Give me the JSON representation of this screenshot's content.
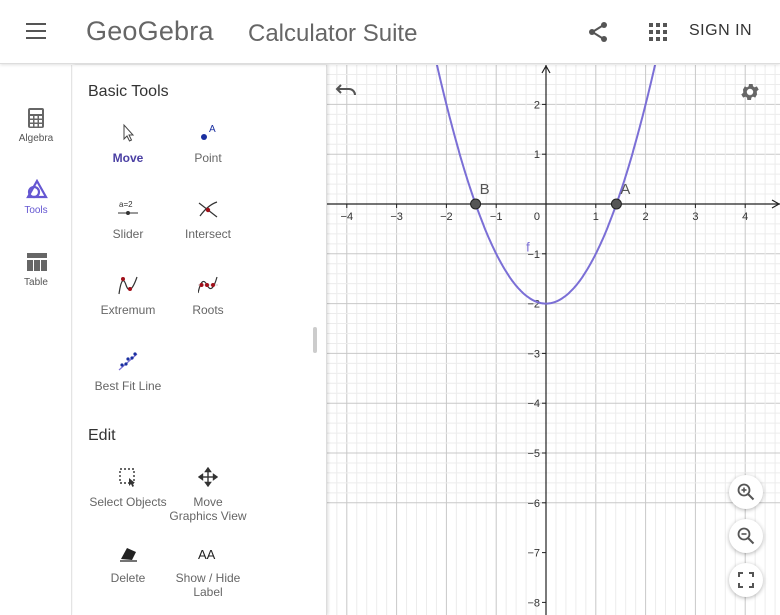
{
  "header": {
    "logo_text": "GeoGebra",
    "title": "Calculator Suite",
    "sign_in_label": "SIGN IN"
  },
  "rail": {
    "items": [
      {
        "label": "Algebra",
        "icon": "calculator-icon",
        "active": false
      },
      {
        "label": "Tools",
        "icon": "tools-icon",
        "active": true
      },
      {
        "label": "Table",
        "icon": "table-icon",
        "active": false
      }
    ]
  },
  "tools_panel": {
    "sections": [
      {
        "title": "Basic Tools",
        "tools": [
          {
            "label": "Move",
            "icon": "cursor-arrow-icon",
            "active": true
          },
          {
            "label": "Point",
            "icon": "point-icon"
          },
          {
            "label": "Slider",
            "icon": "slider-icon"
          },
          {
            "label": "Intersect",
            "icon": "intersect-icon"
          },
          {
            "label": "Extremum",
            "icon": "extremum-icon"
          },
          {
            "label": "Roots",
            "icon": "roots-icon"
          },
          {
            "label": "Best Fit Line",
            "icon": "best-fit-line-icon"
          }
        ]
      },
      {
        "title": "Edit",
        "tools": [
          {
            "label": "Select Objects",
            "icon": "select-objects-icon"
          },
          {
            "label": "Move Graphics View",
            "label_lines": [
              "Move",
              "Graphics View"
            ],
            "icon": "move-graphics-view-icon"
          },
          {
            "label": "Delete",
            "icon": "eraser-icon"
          },
          {
            "label": "Show / Hide Label",
            "label_lines": [
              "Show / Hide",
              "Label"
            ],
            "icon": "show-hide-label-icon"
          }
        ]
      }
    ],
    "slider_icon_text": "a=2",
    "point_icon_text": "A",
    "label_icon_text": "AA"
  },
  "graph": {
    "function_label": "f",
    "function_color": "#7b6fd6",
    "points": [
      {
        "label": "A",
        "x": 1.414,
        "y": 0
      },
      {
        "label": "B",
        "x": -1.414,
        "y": 0
      }
    ],
    "x_ticks": [
      "−4",
      "−3",
      "−2",
      "−1",
      "1",
      "2",
      "3",
      "4"
    ],
    "y_ticks": [
      "2",
      "1",
      "−1",
      "−2",
      "−3",
      "−4",
      "−5",
      "−6",
      "−7",
      "−8"
    ],
    "origin_label": "0"
  },
  "chart_data": {
    "type": "line",
    "title": "",
    "xlabel": "",
    "ylabel": "",
    "xlim": [
      -4.4,
      4.7
    ],
    "ylim": [
      -8.2,
      2.8
    ],
    "grid": true,
    "series": [
      {
        "name": "f",
        "expression": "x^2 - 2",
        "color": "#7b6fd6"
      }
    ],
    "points": [
      {
        "label": "A",
        "x": 1.414,
        "y": 0
      },
      {
        "label": "B",
        "x": -1.414,
        "y": 0
      }
    ]
  },
  "controls": {
    "zoom_in": "zoom-in-icon",
    "zoom_out": "zoom-out-icon",
    "fullscreen": "fullscreen-icon",
    "undo": "undo-icon",
    "settings": "gear-icon"
  }
}
